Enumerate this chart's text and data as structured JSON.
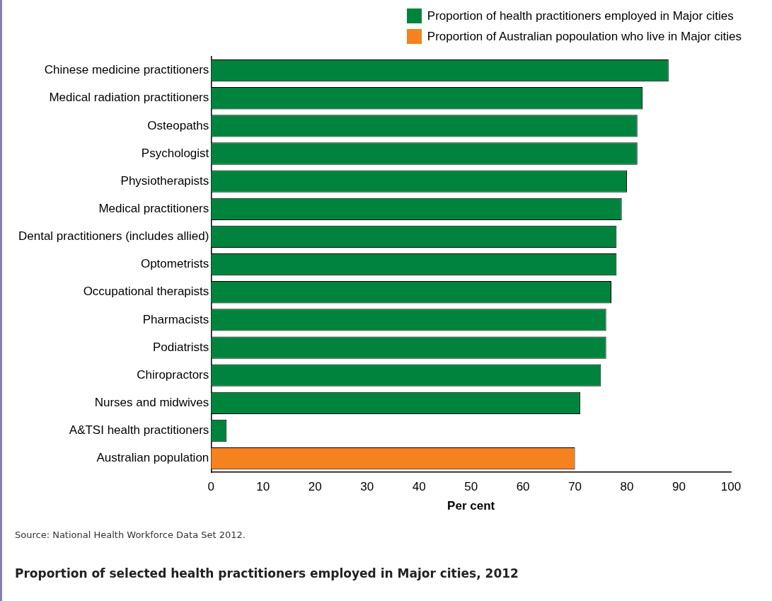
{
  "chart_data": {
    "type": "bar",
    "orientation": "horizontal",
    "title": "Proportion of selected health practitioners employed in Major cities, 2012",
    "xlabel": "Per cent",
    "categories": [
      "Chinese medicine practitioners",
      "Medical radiation practitioners",
      "Osteopaths",
      "Psychologist",
      "Physiotherapists",
      "Medical practitioners",
      "Dental practitioners (includes allied)",
      "Optometrists",
      "Occupational therapists",
      "Pharmacists",
      "Podiatrists",
      "Chiropractors",
      "Nurses and midwives",
      "A&TSI health practitioners",
      "Australian population"
    ],
    "series": [
      {
        "name": "Proportion of health practitioners employed in Major cities",
        "color": "#00843d",
        "values": [
          88,
          83,
          82,
          82,
          80,
          79,
          78,
          78,
          77,
          76,
          76,
          75,
          71,
          3,
          null
        ]
      },
      {
        "name": "Proportion of Australian popoulation who live in Major cities",
        "color": "#f5821f",
        "values": [
          null,
          null,
          null,
          null,
          null,
          null,
          null,
          null,
          null,
          null,
          null,
          null,
          null,
          null,
          70
        ]
      }
    ],
    "xlim": [
      0,
      100
    ],
    "xticks": [
      0,
      10,
      20,
      30,
      40,
      50,
      60,
      70,
      80,
      90,
      100
    ],
    "grid": false,
    "legend": "top right",
    "annotations": [
      "Source: National Health Workforce Data Set 2012."
    ]
  }
}
